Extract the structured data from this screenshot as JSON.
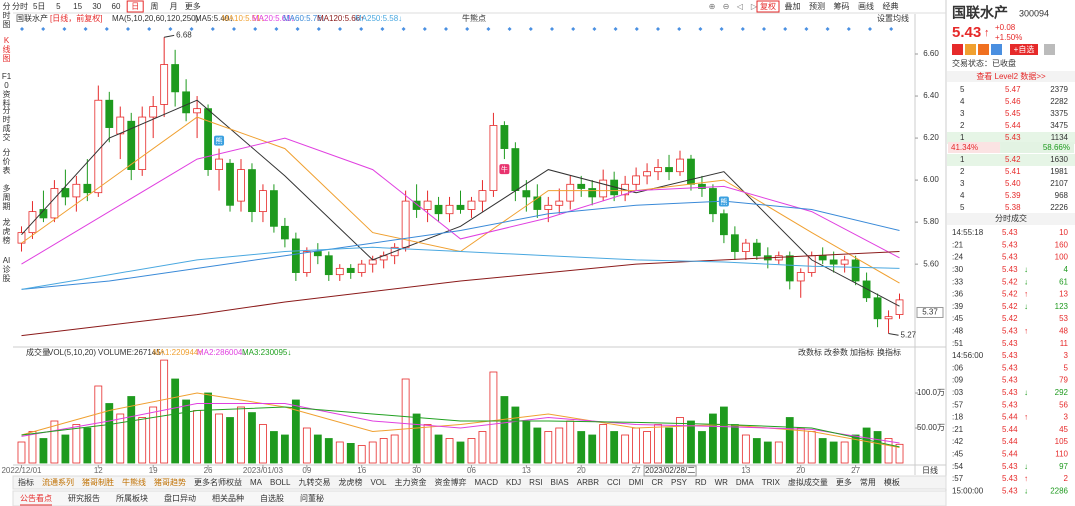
{
  "toolbar": {
    "tabs": [
      "分时",
      "5日",
      "5",
      "15",
      "30",
      "60",
      "日",
      "周",
      "月",
      "更多"
    ],
    "active": 6,
    "tools": [
      "复权",
      "叠加",
      "预测",
      "筹码",
      "画线",
      "经典"
    ]
  },
  "sidebar": [
    "分时图",
    "K线图",
    "F10资料",
    "分时成交",
    "分价表",
    "多周期",
    "龙虎榜",
    "AI诊股"
  ],
  "legend": {
    "name": "国联水产",
    "period": "[日线，前复权]",
    "ma_params": "MA(5,10,20,60,120,250)",
    "signal": "牛熊点",
    "setting": "设置均线"
  },
  "kline": {
    "ylim": [
      5.22,
      6.7
    ],
    "yticks": [
      {
        "value": 6.6,
        "label": "6.60"
      },
      {
        "value": 6.4,
        "label": "6.40"
      },
      {
        "value": 6.2,
        "label": "6.20"
      },
      {
        "value": 6.0,
        "label": "6.00"
      },
      {
        "value": 5.8,
        "label": "5.80"
      },
      {
        "value": 5.6,
        "label": "5.60"
      }
    ],
    "crosshair_price": {
      "value": 5.37,
      "label": "5.37"
    },
    "crosshair_date": {
      "value": 57,
      "label": "2023/02/28/二"
    },
    "high_label": 6.68,
    "low_label": 5.27,
    "signals": [
      {
        "label": "熊",
        "index": 18
      },
      {
        "label": "牛",
        "index": 44
      },
      {
        "label": "熊",
        "index": 64
      }
    ],
    "candles": [
      [
        5.7,
        5.78,
        5.66,
        5.75
      ],
      [
        5.75,
        5.9,
        5.72,
        5.85
      ],
      [
        5.86,
        5.95,
        5.8,
        5.82
      ],
      [
        5.82,
        6.0,
        5.8,
        5.96
      ],
      [
        5.96,
        6.05,
        5.88,
        5.92
      ],
      [
        5.92,
        6.02,
        5.85,
        5.98
      ],
      [
        5.98,
        6.1,
        5.9,
        5.94
      ],
      [
        5.94,
        6.45,
        5.92,
        6.38
      ],
      [
        6.38,
        6.42,
        6.18,
        6.25
      ],
      [
        6.22,
        6.35,
        6.1,
        6.3
      ],
      [
        6.28,
        6.32,
        6.0,
        6.05
      ],
      [
        6.05,
        6.35,
        6.02,
        6.3
      ],
      [
        6.3,
        6.4,
        6.2,
        6.35
      ],
      [
        6.36,
        6.68,
        6.3,
        6.55
      ],
      [
        6.55,
        6.62,
        6.35,
        6.42
      ],
      [
        6.42,
        6.48,
        6.28,
        6.32
      ],
      [
        6.32,
        6.4,
        6.2,
        6.34
      ],
      [
        6.34,
        6.36,
        6.02,
        6.05
      ],
      [
        6.05,
        6.15,
        5.95,
        6.1
      ],
      [
        6.08,
        6.1,
        5.85,
        5.88
      ],
      [
        5.9,
        6.1,
        5.85,
        6.05
      ],
      [
        6.05,
        6.08,
        5.8,
        5.85
      ],
      [
        5.85,
        5.98,
        5.8,
        5.95
      ],
      [
        5.95,
        5.98,
        5.75,
        5.78
      ],
      [
        5.78,
        5.82,
        5.68,
        5.72
      ],
      [
        5.72,
        5.75,
        5.52,
        5.56
      ],
      [
        5.56,
        5.68,
        5.54,
        5.66
      ],
      [
        5.66,
        5.7,
        5.6,
        5.64
      ],
      [
        5.64,
        5.66,
        5.52,
        5.55
      ],
      [
        5.55,
        5.6,
        5.52,
        5.58
      ],
      [
        5.58,
        5.6,
        5.53,
        5.56
      ],
      [
        5.56,
        5.62,
        5.54,
        5.6
      ],
      [
        5.6,
        5.64,
        5.56,
        5.62
      ],
      [
        5.62,
        5.66,
        5.58,
        5.64
      ],
      [
        5.64,
        5.7,
        5.6,
        5.68
      ],
      [
        5.68,
        5.95,
        5.66,
        5.9
      ],
      [
        5.9,
        5.98,
        5.82,
        5.86
      ],
      [
        5.86,
        5.95,
        5.8,
        5.9
      ],
      [
        5.88,
        5.92,
        5.8,
        5.84
      ],
      [
        5.84,
        5.92,
        5.8,
        5.88
      ],
      [
        5.88,
        5.95,
        5.84,
        5.86
      ],
      [
        5.86,
        5.92,
        5.82,
        5.9
      ],
      [
        5.9,
        6.0,
        5.85,
        5.95
      ],
      [
        5.95,
        6.32,
        5.92,
        6.26
      ],
      [
        6.26,
        6.28,
        6.1,
        6.15
      ],
      [
        6.15,
        6.18,
        5.9,
        5.95
      ],
      [
        5.95,
        6.0,
        5.85,
        5.92
      ],
      [
        5.92,
        5.98,
        5.82,
        5.86
      ],
      [
        5.86,
        5.92,
        5.8,
        5.88
      ],
      [
        5.88,
        5.96,
        5.84,
        5.9
      ],
      [
        5.9,
        6.02,
        5.86,
        5.98
      ],
      [
        5.98,
        6.02,
        5.92,
        5.96
      ],
      [
        5.96,
        6.0,
        5.88,
        5.92
      ],
      [
        5.92,
        6.05,
        5.9,
        6.0
      ],
      [
        6.0,
        6.04,
        5.9,
        5.93
      ],
      [
        5.93,
        6.02,
        5.9,
        5.98
      ],
      [
        5.98,
        6.06,
        5.95,
        6.02
      ],
      [
        6.02,
        6.08,
        5.98,
        6.04
      ],
      [
        6.04,
        6.1,
        6.0,
        6.06
      ],
      [
        6.06,
        6.12,
        6.0,
        6.04
      ],
      [
        6.04,
        6.14,
        6.02,
        6.1
      ],
      [
        6.1,
        6.12,
        5.95,
        5.98
      ],
      [
        5.98,
        6.02,
        5.92,
        5.96
      ],
      [
        5.96,
        5.98,
        5.8,
        5.84
      ],
      [
        5.84,
        5.86,
        5.7,
        5.74
      ],
      [
        5.74,
        5.78,
        5.62,
        5.66
      ],
      [
        5.66,
        5.72,
        5.62,
        5.7
      ],
      [
        5.7,
        5.72,
        5.62,
        5.64
      ],
      [
        5.64,
        5.68,
        5.58,
        5.62
      ],
      [
        5.62,
        5.66,
        5.6,
        5.64
      ],
      [
        5.64,
        5.66,
        5.48,
        5.52
      ],
      [
        5.52,
        5.58,
        5.44,
        5.56
      ],
      [
        5.56,
        5.66,
        5.54,
        5.64
      ],
      [
        5.64,
        5.68,
        5.6,
        5.62
      ],
      [
        5.62,
        5.66,
        5.56,
        5.6
      ],
      [
        5.6,
        5.64,
        5.56,
        5.62
      ],
      [
        5.62,
        5.64,
        5.5,
        5.52
      ],
      [
        5.52,
        5.56,
        5.42,
        5.44
      ],
      [
        5.44,
        5.46,
        5.3,
        5.34
      ],
      [
        5.34,
        5.38,
        5.27,
        5.35
      ],
      [
        5.36,
        5.46,
        5.34,
        5.43
      ]
    ],
    "ma_x": [
      0,
      8,
      16,
      24,
      32,
      40,
      48,
      56,
      64,
      72,
      80
    ],
    "ma": [
      {
        "label": "MA5:5.40↓",
        "color": "#333333",
        "values": [
          5.74,
          6.2,
          6.38,
          6.02,
          5.62,
          5.78,
          6.05,
          5.94,
          6.04,
          5.62,
          5.4
        ]
      },
      {
        "label": "MA10:5.51↓",
        "color": "#f0a030",
        "values": [
          5.7,
          6.0,
          6.3,
          6.15,
          5.75,
          5.66,
          5.95,
          5.95,
          6.0,
          5.75,
          5.51
        ]
      },
      {
        "label": "MA20:5.63↓",
        "color": "#e040e0",
        "values": [
          5.6,
          5.85,
          6.1,
          6.2,
          6.05,
          5.72,
          5.82,
          5.95,
          5.97,
          5.85,
          5.63
        ]
      },
      {
        "label": "MA60:5.76↓",
        "color": "#3a8ad8",
        "values": [
          5.48,
          5.52,
          5.58,
          5.64,
          5.7,
          5.76,
          5.84,
          5.88,
          5.9,
          5.86,
          5.76
        ]
      },
      {
        "label": "MA120:5.66↑",
        "color": "#8b1a1a",
        "values": [
          5.26,
          5.31,
          5.36,
          5.42,
          5.47,
          5.52,
          5.56,
          5.6,
          5.62,
          5.64,
          5.66
        ]
      },
      {
        "label": "MA250:5.58↓",
        "color": "#4aa8e0",
        "values": [
          5.48,
          5.55,
          5.62,
          5.66,
          5.68,
          5.66,
          5.64,
          5.62,
          5.61,
          5.59,
          5.58
        ]
      }
    ],
    "xticks": [
      {
        "value": 0,
        "label": "2022/12/01"
      },
      {
        "value": 7,
        "label": "12"
      },
      {
        "value": 12,
        "label": "19"
      },
      {
        "value": 17,
        "label": "26"
      },
      {
        "value": 22,
        "label": "2023/01/03"
      },
      {
        "value": 26,
        "label": "09"
      },
      {
        "value": 31,
        "label": "16"
      },
      {
        "value": 36,
        "label": "30"
      },
      {
        "value": 41,
        "label": "06"
      },
      {
        "value": 46,
        "label": "13"
      },
      {
        "value": 51,
        "label": "20"
      },
      {
        "value": 56,
        "label": "27"
      },
      {
        "value": 66,
        "label": "13"
      },
      {
        "value": 71,
        "label": "20"
      },
      {
        "value": 76,
        "label": "27"
      }
    ],
    "period_label": "日线"
  },
  "volume": {
    "title": "成交量",
    "params": "VOL(5,10,20)",
    "ylim": [
      0,
      150
    ],
    "yticks": [
      {
        "value": 100,
        "label": "100.0万"
      },
      {
        "value": 50,
        "label": "50.00万"
      }
    ],
    "values": [
      30,
      45,
      35,
      60,
      40,
      55,
      50,
      110,
      85,
      70,
      95,
      65,
      80,
      147,
      120,
      90,
      75,
      100,
      70,
      65,
      80,
      72,
      55,
      45,
      40,
      90,
      50,
      40,
      35,
      30,
      28,
      25,
      30,
      35,
      40,
      120,
      70,
      55,
      40,
      35,
      30,
      35,
      45,
      130,
      95,
      80,
      60,
      50,
      45,
      50,
      60,
      45,
      40,
      55,
      45,
      40,
      50,
      45,
      55,
      50,
      65,
      60,
      45,
      70,
      80,
      55,
      40,
      35,
      30,
      30,
      65,
      50,
      45,
      35,
      30,
      30,
      40,
      50,
      45,
      35,
      26.7
    ],
    "legend": [
      {
        "label": "VOLUME:267145↑",
        "color": "#333333"
      },
      {
        "label": "MA1:220944↑",
        "color": "#f0a030"
      },
      {
        "label": "MA2:286004↓",
        "color": "#e040e0"
      },
      {
        "label": "MA3:230095↓",
        "color": "#20a020"
      }
    ],
    "ma": [
      {
        "color": "#f0a030",
        "values": [
          40,
          75,
          100,
          80,
          45,
          55,
          70,
          50,
          55,
          45,
          22.09
        ]
      },
      {
        "color": "#e040e0",
        "values": [
          38,
          60,
          85,
          85,
          60,
          50,
          65,
          55,
          52,
          48,
          28.6
        ]
      },
      {
        "color": "#20a020",
        "values": [
          40,
          55,
          75,
          80,
          70,
          60,
          60,
          58,
          55,
          50,
          23.01
        ]
      }
    ],
    "tools": [
      "改数标",
      "改参数",
      "加指标",
      "换指标"
    ]
  },
  "indicator_tabs": [
    "指标",
    "流通系列",
    "猪哥制胜",
    "牛熊线",
    "猪哥趋势",
    "更多名师权益",
    "MA",
    "BOLL",
    "九转交易",
    "龙虎榜",
    "VOL",
    "主力资金",
    "资金博弈",
    "MACD",
    "KDJ",
    "RSI",
    "BIAS",
    "ARBR",
    "CCI",
    "DMI",
    "CR",
    "PSY",
    "RD",
    "WR",
    "DMA",
    "TRIX",
    "虚拟成交量",
    "更多",
    "常用",
    "模板"
  ],
  "bottom_tabs": [
    "公告看点",
    "研究报告",
    "所属板块",
    "盘口异动",
    "相关品种",
    "自选股",
    "问董秘"
  ],
  "quote": {
    "name": "国联水产",
    "code": "300094",
    "price": "5.43",
    "arrow": "↑",
    "change": "+0.08",
    "pct": "+1.50%",
    "button": "+自选",
    "status": "交易状态：已收盘",
    "level2": "查看 Level2 数据>>",
    "asks": [
      [
        "5",
        "5.47",
        "2379"
      ],
      [
        "4",
        "5.46",
        "2282"
      ],
      [
        "3",
        "5.45",
        "3375"
      ],
      [
        "2",
        "5.44",
        "3475"
      ],
      [
        "1",
        "5.43",
        "1134"
      ]
    ],
    "ratio": [
      {
        "value": 41.34,
        "label": "41.34%"
      },
      {
        "value": 58.66,
        "label": "58.66%"
      }
    ],
    "bids": [
      [
        "1",
        "5.42",
        "1630"
      ],
      [
        "2",
        "5.41",
        "1981"
      ],
      [
        "3",
        "5.40",
        "2107"
      ],
      [
        "4",
        "5.39",
        "968"
      ],
      [
        "5",
        "5.38",
        "2226"
      ]
    ],
    "ticks_title": "分时成交",
    "ticks": [
      {
        "time": "14:55:18",
        "price": "5.43",
        "vol": "10"
      },
      {
        "time": ":21",
        "price": "5.43",
        "vol": "160"
      },
      {
        "time": ":24",
        "price": "5.43",
        "vol": "100"
      },
      {
        "time": ":30",
        "price": "5.43",
        "dir": "↓",
        "vol": "4"
      },
      {
        "time": ":33",
        "price": "5.42",
        "dir": "↓",
        "vol": "61"
      },
      {
        "time": ":36",
        "price": "5.42",
        "dir": "↑",
        "vol": "13"
      },
      {
        "time": ":39",
        "price": "5.42",
        "dir": "↓",
        "vol": "123"
      },
      {
        "time": ":45",
        "price": "5.42",
        "vol": "53"
      },
      {
        "time": ":48",
        "price": "5.43",
        "dir": "↑",
        "vol": "48"
      },
      {
        "time": ":51",
        "price": "5.43",
        "vol": "11"
      },
      {
        "time": "14:56:00",
        "price": "5.43",
        "vol": "3"
      },
      {
        "time": ":06",
        "price": "5.43",
        "vol": "5"
      },
      {
        "time": ":09",
        "price": "5.43",
        "vol": "79"
      },
      {
        "time": ":03",
        "price": "5.43",
        "dir": "↓",
        "vol": "292"
      },
      {
        "time": ":57",
        "price": "5.43",
        "vol": "56"
      },
      {
        "time": ":18",
        "price": "5.44",
        "dir": "↑",
        "vol": "3"
      },
      {
        "time": ":21",
        "price": "5.44",
        "vol": "45"
      },
      {
        "time": ":42",
        "price": "5.44",
        "vol": "105"
      },
      {
        "time": ":45",
        "price": "5.44",
        "vol": "110"
      },
      {
        "time": ":54",
        "price": "5.43",
        "dir": "↓",
        "vol": "97"
      },
      {
        "time": ":57",
        "price": "5.43",
        "dir": "↑",
        "vol": "2"
      },
      {
        "time": "15:00:00",
        "price": "5.43",
        "dir": "↓",
        "vol": "2286"
      }
    ]
  }
}
